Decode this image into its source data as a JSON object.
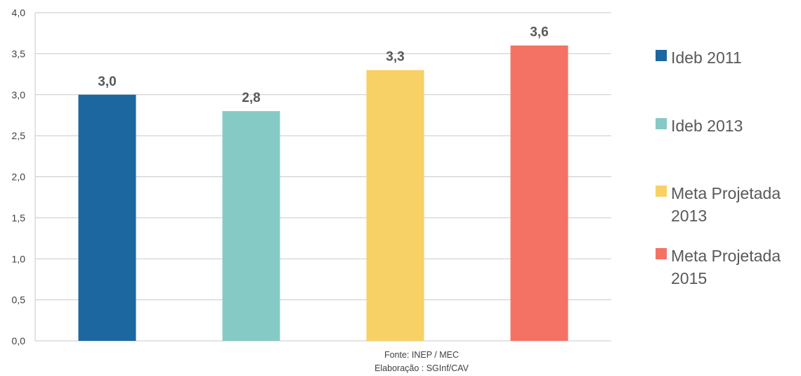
{
  "chart_data": {
    "type": "bar",
    "categories": [
      "Ideb 2011",
      "Ideb 2013",
      "Meta Projetada\n 2013",
      "Meta Projetada\n2015"
    ],
    "values": [
      3.0,
      2.8,
      3.3,
      3.6
    ],
    "data_labels": [
      "3,0",
      "2,8",
      "3,3",
      "3,6"
    ],
    "colors": [
      "#1C67A0",
      "#86CAC5",
      "#F7D165",
      "#F37264"
    ],
    "ylim": [
      0,
      4.0
    ],
    "yticks": [
      0,
      0.5,
      1.0,
      1.5,
      2.0,
      2.5,
      3.0,
      3.5,
      4.0
    ],
    "ytick_labels": [
      "0,0",
      "0,5",
      "1,0",
      "1,5",
      "2,0",
      "2,5",
      "3,0",
      "3,5",
      "4,0"
    ],
    "grid": true,
    "legend_position": "right",
    "title": "",
    "xlabel": "",
    "ylabel": ""
  },
  "source": {
    "line1": "Fonte: INEP / MEC",
    "line2": "Elaboração : SGInf/CAV"
  }
}
